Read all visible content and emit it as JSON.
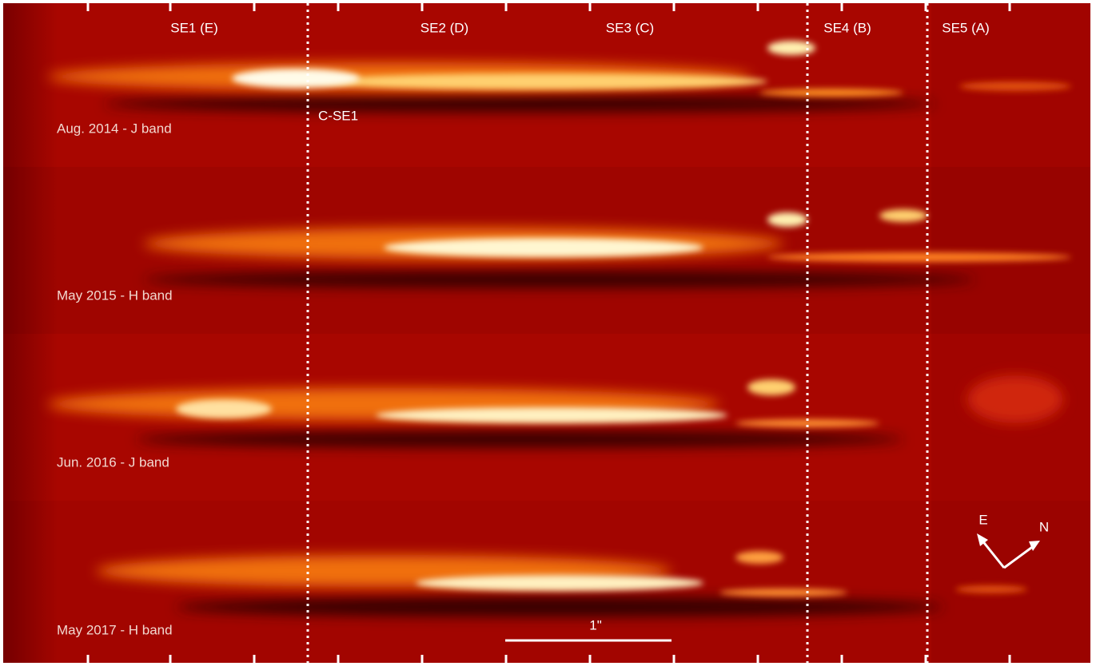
{
  "features": [
    "SE1 (E)",
    "SE2 (D)",
    "SE3 (C)",
    "SE4 (B)",
    "SE5 (A)"
  ],
  "annotation": "C-SE1",
  "panels": [
    "Aug. 2014 - J band",
    "May 2015 - H band",
    "Jun. 2016 - J band",
    "May 2017 - H band"
  ],
  "scale_bar": "1\"",
  "compass": {
    "east": "E",
    "north": "N"
  }
}
